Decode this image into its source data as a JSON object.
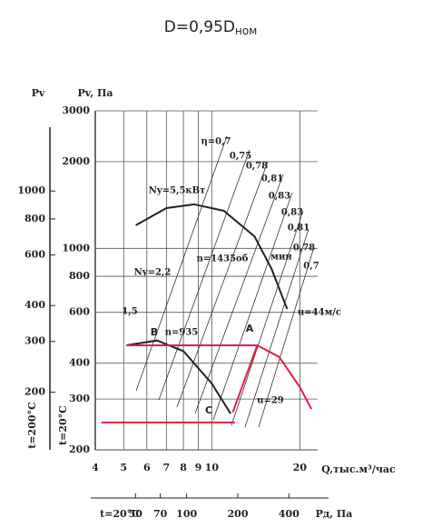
{
  "title": "D=0,95D",
  "title_subscript": "ном",
  "chart_data": {
    "type": "line",
    "xscale": "log",
    "yscale": "log",
    "grid": true,
    "x_label": "Q,тыс.м³/час",
    "y_label": "Pv, Па",
    "y2_label": "Pv",
    "y_temperature_label": "t=20°C",
    "y2_temperature_label": "t=200°C",
    "xlim": [
      4,
      23
    ],
    "ylim": [
      200,
      3000
    ],
    "xticks": [
      4,
      5,
      6,
      7,
      8,
      9,
      10,
      20
    ],
    "yticks": [
      200,
      300,
      400,
      600,
      800,
      1000,
      2000,
      3000
    ],
    "y2lim": [
      126,
      1900
    ],
    "y2ticks": [
      200,
      300,
      400,
      600,
      800,
      1000
    ],
    "pd_axis": {
      "label": "Pд, Па",
      "temperature_label": "t=20°C",
      "lim": [
        29,
        590
      ],
      "ticks": [
        50,
        70,
        100,
        200,
        400
      ]
    },
    "series": [
      {
        "color": "#222222",
        "x": [
          5.5,
          7,
          8.7,
          11,
          14,
          16,
          18.1
        ],
        "values": [
          1203,
          1380,
          1422,
          1350,
          1100,
          850,
          616
        ]
      },
      {
        "color": "#222222",
        "x": [
          5.1,
          6.5,
          8,
          10,
          11.6
        ],
        "values": [
          461,
          479,
          440,
          340,
          267
        ]
      },
      {
        "color": "#e0204a",
        "x": [
          5.1,
          14.3,
          17,
          20,
          21.9
        ],
        "values": [
          461,
          461,
          420,
          330,
          277
        ]
      },
      {
        "color": "#e0204a",
        "x": [
          4.2,
          12
        ],
        "values": [
          249,
          249
        ]
      },
      {
        "color": "#e0204a",
        "x": [
          11.8,
          14.3
        ],
        "values": [
          270,
          461
        ]
      }
    ],
    "annotations": [
      {
        "text": "η=0,7"
      },
      {
        "text": "0,75"
      },
      {
        "text": "0,78"
      },
      {
        "text": "0,81"
      },
      {
        "text": "0,83"
      },
      {
        "text": "0,83"
      },
      {
        "text": "0,81"
      },
      {
        "text": "0,78"
      },
      {
        "text": "0,7"
      },
      {
        "text": "Ny=5,5кВт"
      },
      {
        "text": "n=1435об"
      },
      {
        "text": "мин"
      },
      {
        "text": "Ny=2,2"
      },
      {
        "text": "1,5"
      },
      {
        "text": "n=935"
      },
      {
        "text": "u=44м/с"
      },
      {
        "text": "u=29"
      },
      {
        "text": "A",
        "color": "#e0204a"
      },
      {
        "text": "B",
        "color": "#e0204a"
      },
      {
        "text": "C",
        "color": "#e0204a"
      }
    ]
  }
}
